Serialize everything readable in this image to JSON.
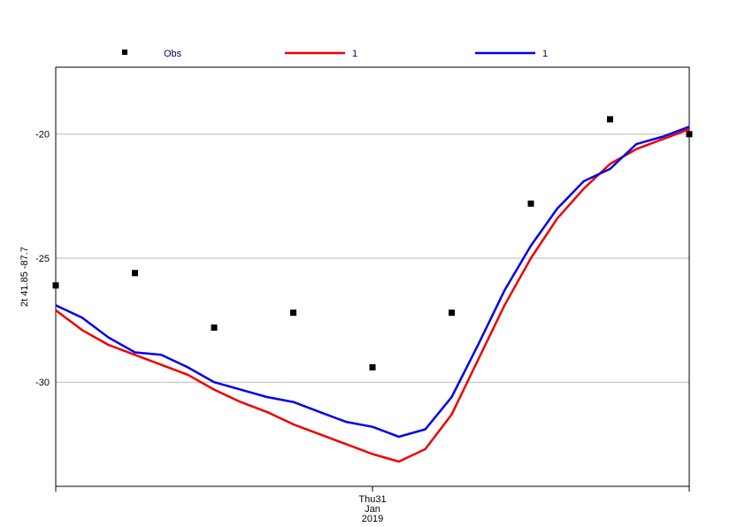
{
  "chart_data": {
    "type": "line",
    "ylabel": "2t 41.85 -87.7",
    "ylim": [
      -34.2,
      -17.3
    ],
    "yticks": [
      -30,
      -25,
      -20
    ],
    "ytick_labels": [
      "-30",
      "-25",
      "-20"
    ],
    "xlim": [
      0,
      24
    ],
    "xticks": [
      12
    ],
    "xtick_labels": [
      [
        "Thu31",
        "Jan",
        "2019"
      ]
    ],
    "grid": true,
    "legend_position": "top",
    "legend": [
      {
        "label": "Obs",
        "kind": "marker",
        "color": "#000000",
        "text_color": "#000066"
      },
      {
        "label": "1",
        "kind": "line",
        "color": "#ee0000",
        "text_color": "#000066"
      },
      {
        "label": "1",
        "kind": "line",
        "color": "#0000ee",
        "text_color": "#000066"
      }
    ],
    "series": [
      {
        "name": "Obs",
        "kind": "marker",
        "color": "#000000",
        "x": [
          0,
          3,
          6,
          9,
          12,
          15,
          18,
          21,
          24
        ],
        "y": [
          -26.1,
          -25.6,
          -27.8,
          -27.2,
          -29.4,
          -27.2,
          -22.8,
          -19.4,
          -20.0
        ]
      },
      {
        "name": "1",
        "kind": "line",
        "color": "#ee0000",
        "x": [
          0,
          1,
          2,
          3,
          4,
          5,
          6,
          7,
          8,
          9,
          10,
          11,
          12,
          13,
          14,
          15,
          16,
          17,
          18,
          19,
          20,
          21,
          22,
          23,
          24
        ],
        "y": [
          -27.1,
          -27.9,
          -28.5,
          -28.9,
          -29.3,
          -29.7,
          -30.3,
          -30.8,
          -31.2,
          -31.7,
          -32.1,
          -32.5,
          -32.9,
          -33.2,
          -32.7,
          -31.3,
          -29.1,
          -26.9,
          -25.0,
          -23.4,
          -22.2,
          -21.2,
          -20.6,
          -20.2,
          -19.8
        ]
      },
      {
        "name": "1",
        "kind": "line",
        "color": "#0000ee",
        "x": [
          0,
          1,
          2,
          3,
          4,
          5,
          6,
          7,
          8,
          9,
          10,
          11,
          12,
          13,
          14,
          15,
          16,
          17,
          18,
          19,
          20,
          21,
          22,
          23,
          24
        ],
        "y": [
          -26.9,
          -27.4,
          -28.2,
          -28.8,
          -28.9,
          -29.4,
          -30.0,
          -30.3,
          -30.6,
          -30.8,
          -31.2,
          -31.6,
          -31.8,
          -32.2,
          -31.9,
          -30.6,
          -28.5,
          -26.3,
          -24.5,
          -23.0,
          -21.9,
          -21.4,
          -20.4,
          -20.1,
          -19.7
        ]
      }
    ]
  }
}
